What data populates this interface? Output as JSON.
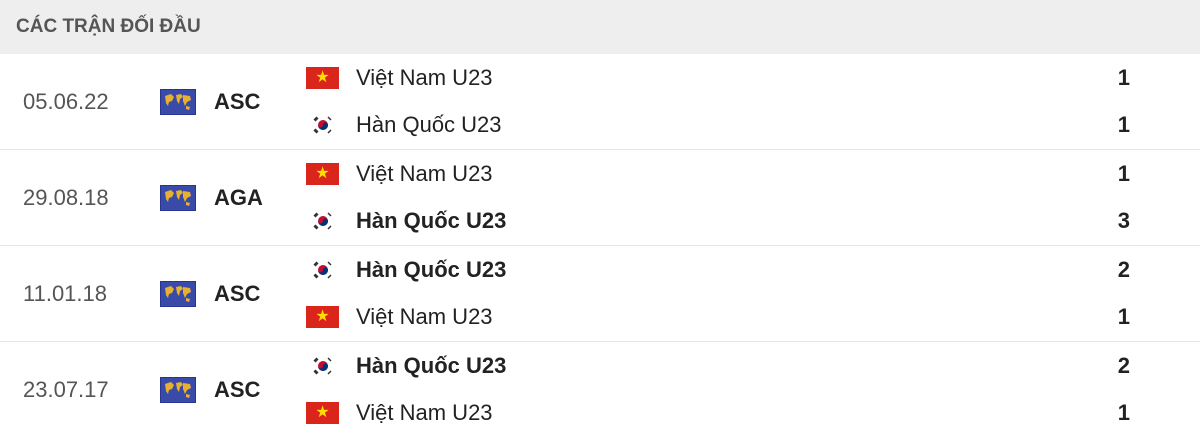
{
  "header": {
    "title": "CÁC TRẬN ĐỐI ĐẦU"
  },
  "colors": {
    "vietnam_flag": "#da251d",
    "competition_flag": "#3a4aa8"
  },
  "matches": [
    {
      "date": "05.06.22",
      "competition": "ASC",
      "home": {
        "name": "Việt Nam U23",
        "flag": "vietnam",
        "score": "1",
        "winner": false
      },
      "away": {
        "name": "Hàn Quốc U23",
        "flag": "korea",
        "score": "1",
        "winner": false
      }
    },
    {
      "date": "29.08.18",
      "competition": "AGA",
      "home": {
        "name": "Việt Nam U23",
        "flag": "vietnam",
        "score": "1",
        "winner": false
      },
      "away": {
        "name": "Hàn Quốc U23",
        "flag": "korea",
        "score": "3",
        "winner": true
      }
    },
    {
      "date": "11.01.18",
      "competition": "ASC",
      "home": {
        "name": "Hàn Quốc U23",
        "flag": "korea",
        "score": "2",
        "winner": true
      },
      "away": {
        "name": "Việt Nam U23",
        "flag": "vietnam",
        "score": "1",
        "winner": false
      }
    },
    {
      "date": "23.07.17",
      "competition": "ASC",
      "home": {
        "name": "Hàn Quốc U23",
        "flag": "korea",
        "score": "2",
        "winner": true
      },
      "away": {
        "name": "Việt Nam U23",
        "flag": "vietnam",
        "score": "1",
        "winner": false
      }
    }
  ]
}
